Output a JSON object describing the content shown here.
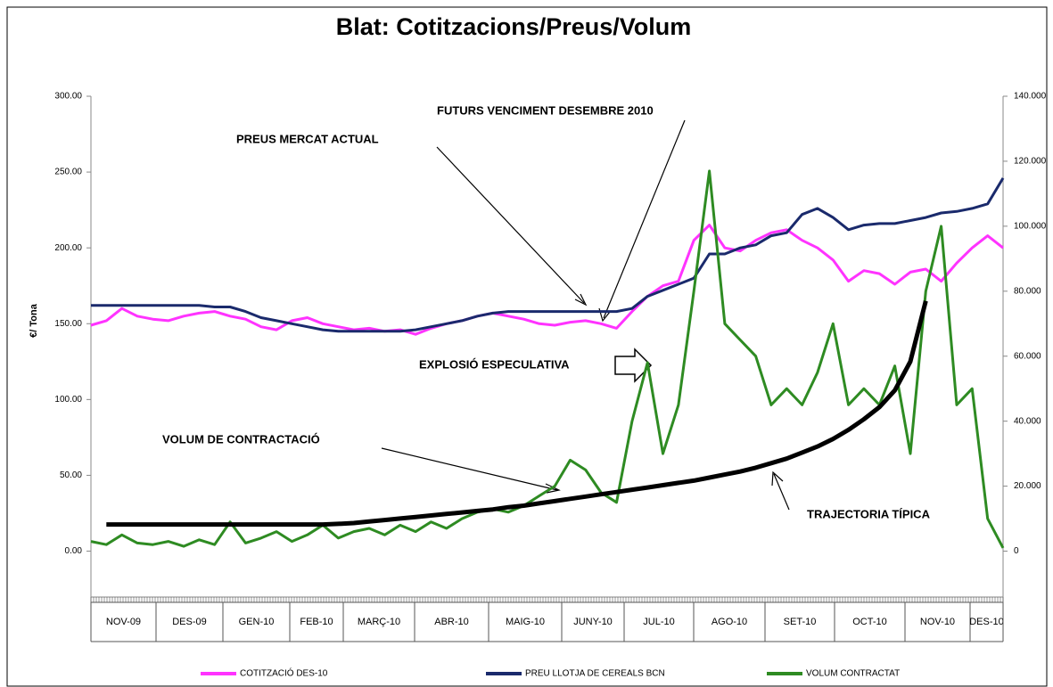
{
  "chart_data": {
    "type": "line",
    "title": "Blat: Cotitzacions/Preus/Volum",
    "y_label": "€/ Tona",
    "months": [
      "NOV-09",
      "DES-09",
      "GEN-10",
      "FEB-10",
      "MARÇ-10",
      "ABR-10",
      "MAIG-10",
      "JUNY-10",
      "JUL-10",
      "AGO-10",
      "SET-10",
      "OCT-10",
      "NOV-10",
      "DES-10"
    ],
    "ylim": [
      -42,
      300
    ],
    "yticks": [
      {
        "value": 0,
        "label": "0.00"
      },
      {
        "value": 50,
        "label": "50.00"
      },
      {
        "value": 100,
        "label": "100.00"
      },
      {
        "value": 150,
        "label": "150.00"
      },
      {
        "value": 200,
        "label": "200.00"
      },
      {
        "value": 250,
        "label": "250.00"
      },
      {
        "value": 300,
        "label": "300.00"
      }
    ],
    "y2lim": [
      -19600,
      140000
    ],
    "y2ticks": [
      0,
      {
        "value": 20000,
        "label": "20.000"
      },
      {
        "value": 40000,
        "label": "40.000"
      },
      {
        "value": 60000,
        "label": "60.000"
      },
      {
        "value": 80000,
        "label": "80.000"
      },
      {
        "value": 100000,
        "label": "100.000"
      },
      {
        "value": 120000,
        "label": "120.000"
      },
      {
        "value": 140000,
        "label": "140.000"
      }
    ],
    "series": [
      {
        "name": "COTITZACIÓ DES-10",
        "color": "#ff33ff",
        "values": [
          149,
          152,
          160,
          155,
          153,
          152,
          155,
          157,
          158,
          155,
          153,
          148,
          146,
          152,
          154,
          150,
          148,
          146,
          147,
          145,
          146,
          143,
          147,
          150,
          152,
          155,
          157,
          155,
          153,
          150,
          149,
          151,
          152,
          150,
          147,
          158,
          168,
          175,
          178,
          205,
          215,
          200,
          198,
          205,
          210,
          212,
          205,
          200,
          192,
          178,
          185,
          183,
          176,
          184,
          186,
          178,
          190,
          200,
          208,
          200
        ]
      },
      {
        "name": "PREU LLOTJA DE CEREALS BCN",
        "color": "#1a2a6c",
        "values": [
          162,
          162,
          162,
          162,
          162,
          162,
          162,
          162,
          161,
          161,
          158,
          154,
          152,
          150,
          148,
          146,
          145,
          145,
          145,
          145,
          145,
          146,
          148,
          150,
          152,
          155,
          157,
          158,
          158,
          158,
          158,
          158,
          158,
          158,
          158,
          160,
          168,
          172,
          176,
          180,
          196,
          196,
          200,
          202,
          208,
          210,
          222,
          226,
          220,
          212,
          215,
          216,
          216,
          218,
          220,
          223,
          224,
          226,
          229,
          246
        ]
      },
      {
        "name": "VOLUM CONTRACTAT",
        "color": "#2e8b22",
        "axis": "y2",
        "values": [
          3000,
          2000,
          5000,
          2500,
          2000,
          3000,
          1500,
          3500,
          2000,
          9000,
          2500,
          4000,
          6000,
          3000,
          5000,
          8000,
          4000,
          6000,
          7000,
          5000,
          8000,
          6000,
          9000,
          7000,
          10000,
          12000,
          13000,
          12000,
          14000,
          17000,
          20000,
          28000,
          25000,
          18000,
          15000,
          40000,
          58000,
          30000,
          45000,
          80000,
          117000,
          70000,
          65000,
          60000,
          45000,
          50000,
          45000,
          55000,
          70000,
          45000,
          50000,
          45000,
          57000,
          30000,
          80000,
          100000,
          45000,
          50000,
          10000,
          1000
        ]
      }
    ],
    "trajectory": {
      "color": "#000000",
      "values": [
        null,
        17.6,
        17.6,
        17.6,
        17.6,
        17.6,
        17.6,
        17.6,
        17.6,
        17.6,
        17.6,
        17.6,
        17.6,
        17.6,
        17.6,
        17.6,
        18,
        18.5,
        19.5,
        20.5,
        21.5,
        22.5,
        23.5,
        24.5,
        25.5,
        26.5,
        27.5,
        29,
        30,
        31.5,
        33,
        34.5,
        36,
        37.5,
        39,
        40.5,
        42,
        43.5,
        45,
        46.5,
        48.5,
        50.5,
        52.5,
        55,
        58,
        61,
        65,
        69,
        74,
        80,
        87,
        95,
        106,
        125,
        165,
        null,
        null,
        null,
        null,
        null
      ]
    },
    "annotations": [
      "FUTURS VENCIMENT DESEMBRE 2010",
      "PREUS MERCAT ACTUAL",
      "EXPLOSIÓ ESPECULATIVA",
      "VOLUM DE CONTRACTACIÓ",
      "TRAJECTORIA TÍPICA"
    ]
  }
}
